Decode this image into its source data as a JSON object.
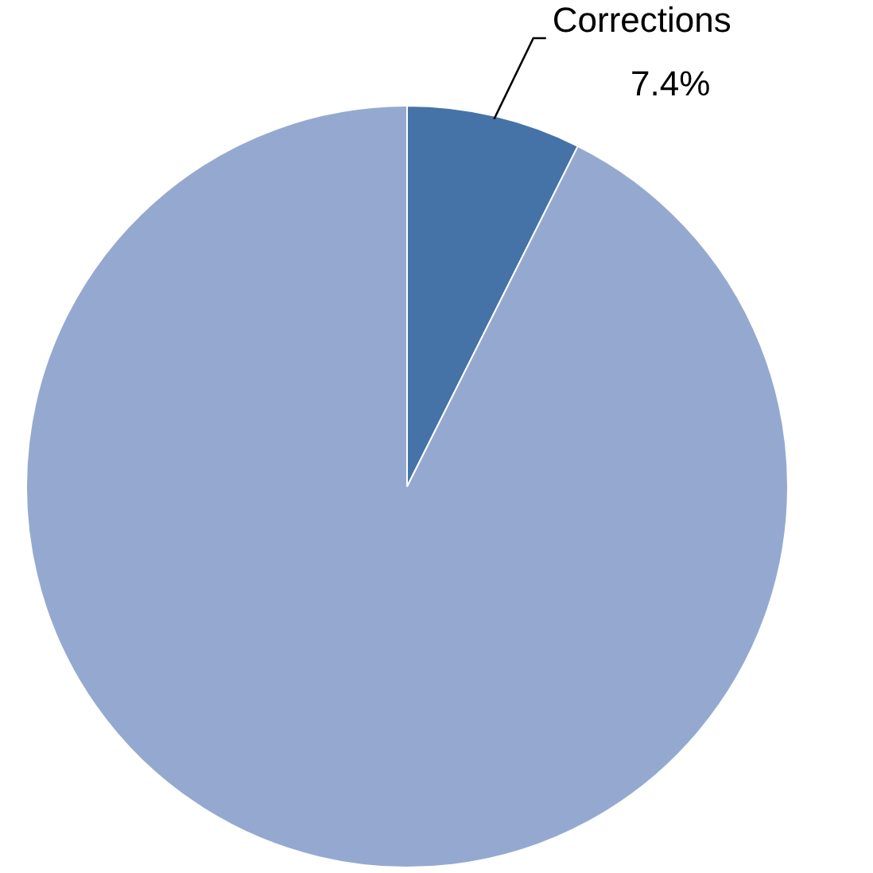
{
  "chart_data": {
    "type": "pie",
    "categories": [
      "Corrections",
      null
    ],
    "values": [
      7.4,
      92.6
    ],
    "colors": [
      "#4573a7",
      "#95a9d0"
    ],
    "value_labels": [
      "7.4%",
      null
    ],
    "legend": false
  }
}
